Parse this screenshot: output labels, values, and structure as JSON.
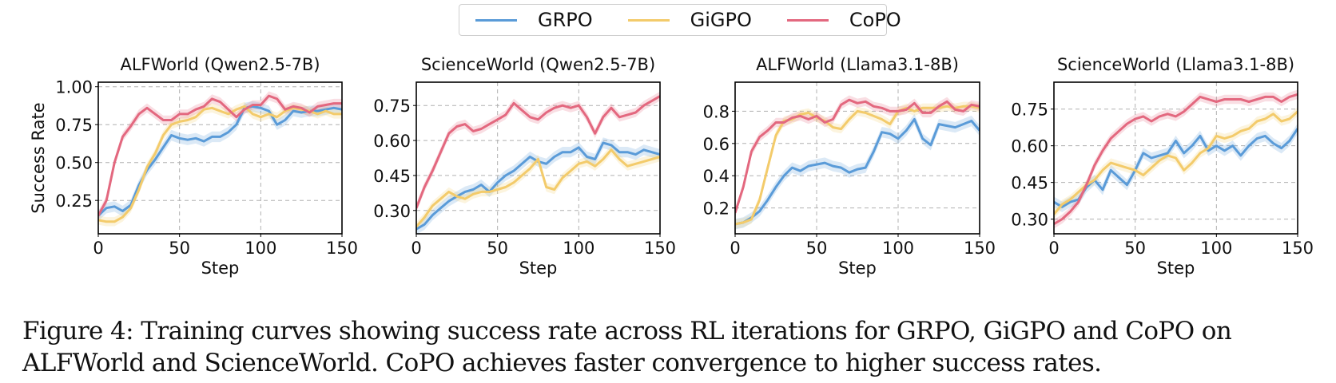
{
  "legend": [
    {
      "name": "GRPO",
      "color": "#5a9bd8"
    },
    {
      "name": "GiGPO",
      "color": "#f3cb6b"
    },
    {
      "name": "CoPO",
      "color": "#e3687f"
    }
  ],
  "caption": {
    "line1": "Figure 4: Training curves showing success rate across RL iterations for GRPO, GiGPO and CoPO on",
    "line2": "ALFWorld and ScienceWorld. CoPO achieves faster convergence to higher success rates."
  },
  "chart_data": [
    {
      "type": "line",
      "title": "ALFWorld (Qwen2.5-7B)",
      "xlabel": "Step",
      "ylabel": "Success Rate",
      "xlim": [
        0,
        150
      ],
      "ylim": [
        0.03,
        1.03
      ],
      "xticks": [
        0,
        50,
        100,
        150
      ],
      "yticks": [
        0.25,
        0.5,
        0.75,
        1.0
      ],
      "ytick_labels": [
        "0.25",
        "0.50",
        "0.75",
        "1.00"
      ],
      "grid": true,
      "x": [
        0,
        5,
        10,
        15,
        20,
        25,
        30,
        35,
        40,
        45,
        50,
        55,
        60,
        65,
        70,
        75,
        80,
        85,
        90,
        95,
        100,
        105,
        110,
        115,
        120,
        125,
        130,
        135,
        140,
        145,
        150
      ],
      "series": [
        {
          "name": "GRPO",
          "values": [
            0.15,
            0.2,
            0.21,
            0.18,
            0.22,
            0.35,
            0.45,
            0.52,
            0.6,
            0.68,
            0.66,
            0.65,
            0.66,
            0.64,
            0.67,
            0.67,
            0.7,
            0.75,
            0.86,
            0.87,
            0.86,
            0.84,
            0.75,
            0.78,
            0.84,
            0.83,
            0.84,
            0.84,
            0.85,
            0.86,
            0.85
          ]
        },
        {
          "name": "GiGPO",
          "values": [
            0.12,
            0.11,
            0.11,
            0.14,
            0.2,
            0.32,
            0.47,
            0.56,
            0.68,
            0.75,
            0.77,
            0.78,
            0.8,
            0.85,
            0.86,
            0.84,
            0.82,
            0.85,
            0.87,
            0.82,
            0.8,
            0.82,
            0.8,
            0.84,
            0.86,
            0.85,
            0.84,
            0.82,
            0.84,
            0.82,
            0.82
          ]
        },
        {
          "name": "CoPO",
          "values": [
            0.15,
            0.25,
            0.5,
            0.67,
            0.74,
            0.82,
            0.86,
            0.82,
            0.78,
            0.78,
            0.82,
            0.82,
            0.85,
            0.87,
            0.92,
            0.9,
            0.85,
            0.8,
            0.85,
            0.88,
            0.88,
            0.94,
            0.92,
            0.85,
            0.87,
            0.86,
            0.83,
            0.87,
            0.88,
            0.89,
            0.89
          ]
        }
      ]
    },
    {
      "type": "line",
      "title": "ScienceWorld (Qwen2.5-7B)",
      "xlabel": "Step",
      "ylabel": "",
      "xlim": [
        0,
        150
      ],
      "ylim": [
        0.2,
        0.85
      ],
      "xticks": [
        0,
        50,
        100,
        150
      ],
      "yticks": [
        0.3,
        0.45,
        0.6,
        0.75
      ],
      "ytick_labels": [
        "0.30",
        "0.45",
        "0.60",
        "0.75"
      ],
      "grid": true,
      "x": [
        0,
        5,
        10,
        15,
        20,
        25,
        30,
        35,
        40,
        45,
        50,
        55,
        60,
        65,
        70,
        75,
        80,
        85,
        90,
        95,
        100,
        105,
        110,
        115,
        120,
        125,
        130,
        135,
        140,
        145,
        150
      ],
      "series": [
        {
          "name": "GRPO",
          "values": [
            0.22,
            0.24,
            0.28,
            0.31,
            0.34,
            0.36,
            0.38,
            0.39,
            0.41,
            0.38,
            0.42,
            0.45,
            0.47,
            0.5,
            0.53,
            0.51,
            0.5,
            0.53,
            0.55,
            0.55,
            0.57,
            0.53,
            0.52,
            0.59,
            0.58,
            0.55,
            0.55,
            0.54,
            0.56,
            0.55,
            0.54
          ]
        },
        {
          "name": "GiGPO",
          "values": [
            0.23,
            0.27,
            0.32,
            0.35,
            0.38,
            0.36,
            0.35,
            0.37,
            0.38,
            0.38,
            0.39,
            0.4,
            0.42,
            0.45,
            0.48,
            0.52,
            0.4,
            0.39,
            0.44,
            0.47,
            0.5,
            0.51,
            0.49,
            0.52,
            0.56,
            0.52,
            0.49,
            0.5,
            0.51,
            0.52,
            0.53
          ]
        },
        {
          "name": "CoPO",
          "values": [
            0.31,
            0.4,
            0.47,
            0.55,
            0.63,
            0.66,
            0.67,
            0.64,
            0.65,
            0.67,
            0.69,
            0.71,
            0.76,
            0.73,
            0.7,
            0.69,
            0.72,
            0.74,
            0.75,
            0.74,
            0.75,
            0.7,
            0.63,
            0.7,
            0.74,
            0.7,
            0.71,
            0.72,
            0.75,
            0.77,
            0.79
          ]
        }
      ]
    },
    {
      "type": "line",
      "title": "ALFWorld (Llama3.1-8B)",
      "xlabel": "Step",
      "ylabel": "",
      "xlim": [
        0,
        150
      ],
      "ylim": [
        0.04,
        0.98
      ],
      "xticks": [
        0,
        50,
        100,
        150
      ],
      "yticks": [
        0.2,
        0.4,
        0.6,
        0.8
      ],
      "ytick_labels": [
        "0.2",
        "0.4",
        "0.6",
        "0.8"
      ],
      "grid": true,
      "x": [
        0,
        5,
        10,
        15,
        20,
        25,
        30,
        35,
        40,
        45,
        50,
        55,
        60,
        65,
        70,
        75,
        80,
        85,
        90,
        95,
        100,
        105,
        110,
        115,
        120,
        125,
        130,
        135,
        140,
        145,
        150
      ],
      "series": [
        {
          "name": "GRPO",
          "values": [
            0.1,
            0.11,
            0.14,
            0.18,
            0.25,
            0.33,
            0.4,
            0.45,
            0.43,
            0.46,
            0.47,
            0.48,
            0.46,
            0.45,
            0.42,
            0.44,
            0.45,
            0.55,
            0.67,
            0.66,
            0.63,
            0.68,
            0.75,
            0.63,
            0.59,
            0.72,
            0.71,
            0.7,
            0.72,
            0.74,
            0.68
          ]
        },
        {
          "name": "GiGPO",
          "values": [
            0.1,
            0.11,
            0.13,
            0.25,
            0.45,
            0.65,
            0.74,
            0.75,
            0.78,
            0.79,
            0.76,
            0.74,
            0.7,
            0.69,
            0.75,
            0.8,
            0.79,
            0.77,
            0.75,
            0.72,
            0.8,
            0.82,
            0.8,
            0.82,
            0.82,
            0.82,
            0.83,
            0.82,
            0.83,
            0.83,
            0.82
          ]
        },
        {
          "name": "CoPO",
          "values": [
            0.17,
            0.33,
            0.55,
            0.64,
            0.68,
            0.73,
            0.73,
            0.76,
            0.77,
            0.75,
            0.77,
            0.73,
            0.75,
            0.84,
            0.87,
            0.85,
            0.86,
            0.83,
            0.82,
            0.8,
            0.8,
            0.81,
            0.85,
            0.79,
            0.79,
            0.83,
            0.86,
            0.81,
            0.8,
            0.84,
            0.83
          ]
        }
      ]
    },
    {
      "type": "line",
      "title": "ScienceWorld (Llama3.1-8B)",
      "xlabel": "Step",
      "ylabel": "",
      "xlim": [
        0,
        150
      ],
      "ylim": [
        0.24,
        0.86
      ],
      "xticks": [
        0,
        50,
        100,
        150
      ],
      "yticks": [
        0.3,
        0.45,
        0.6,
        0.75
      ],
      "ytick_labels": [
        "0.30",
        "0.45",
        "0.60",
        "0.75"
      ],
      "grid": true,
      "x": [
        0,
        5,
        10,
        15,
        20,
        25,
        30,
        35,
        40,
        45,
        50,
        55,
        60,
        65,
        70,
        75,
        80,
        85,
        90,
        95,
        100,
        105,
        110,
        115,
        120,
        125,
        130,
        135,
        140,
        145,
        150
      ],
      "series": [
        {
          "name": "GRPO",
          "values": [
            0.37,
            0.35,
            0.37,
            0.38,
            0.43,
            0.46,
            0.42,
            0.5,
            0.47,
            0.44,
            0.5,
            0.57,
            0.55,
            0.56,
            0.57,
            0.62,
            0.57,
            0.6,
            0.64,
            0.58,
            0.6,
            0.58,
            0.6,
            0.56,
            0.6,
            0.63,
            0.64,
            0.61,
            0.59,
            0.62,
            0.67
          ]
        },
        {
          "name": "GiGPO",
          "values": [
            0.32,
            0.36,
            0.38,
            0.41,
            0.44,
            0.46,
            0.5,
            0.53,
            0.52,
            0.51,
            0.5,
            0.48,
            0.51,
            0.54,
            0.56,
            0.55,
            0.5,
            0.53,
            0.57,
            0.59,
            0.64,
            0.63,
            0.64,
            0.66,
            0.67,
            0.7,
            0.71,
            0.73,
            0.7,
            0.71,
            0.74
          ]
        },
        {
          "name": "CoPO",
          "values": [
            0.28,
            0.3,
            0.33,
            0.37,
            0.44,
            0.52,
            0.58,
            0.63,
            0.66,
            0.69,
            0.71,
            0.72,
            0.7,
            0.72,
            0.73,
            0.72,
            0.74,
            0.77,
            0.8,
            0.79,
            0.78,
            0.79,
            0.79,
            0.79,
            0.78,
            0.79,
            0.8,
            0.8,
            0.78,
            0.8,
            0.81
          ]
        }
      ]
    }
  ]
}
